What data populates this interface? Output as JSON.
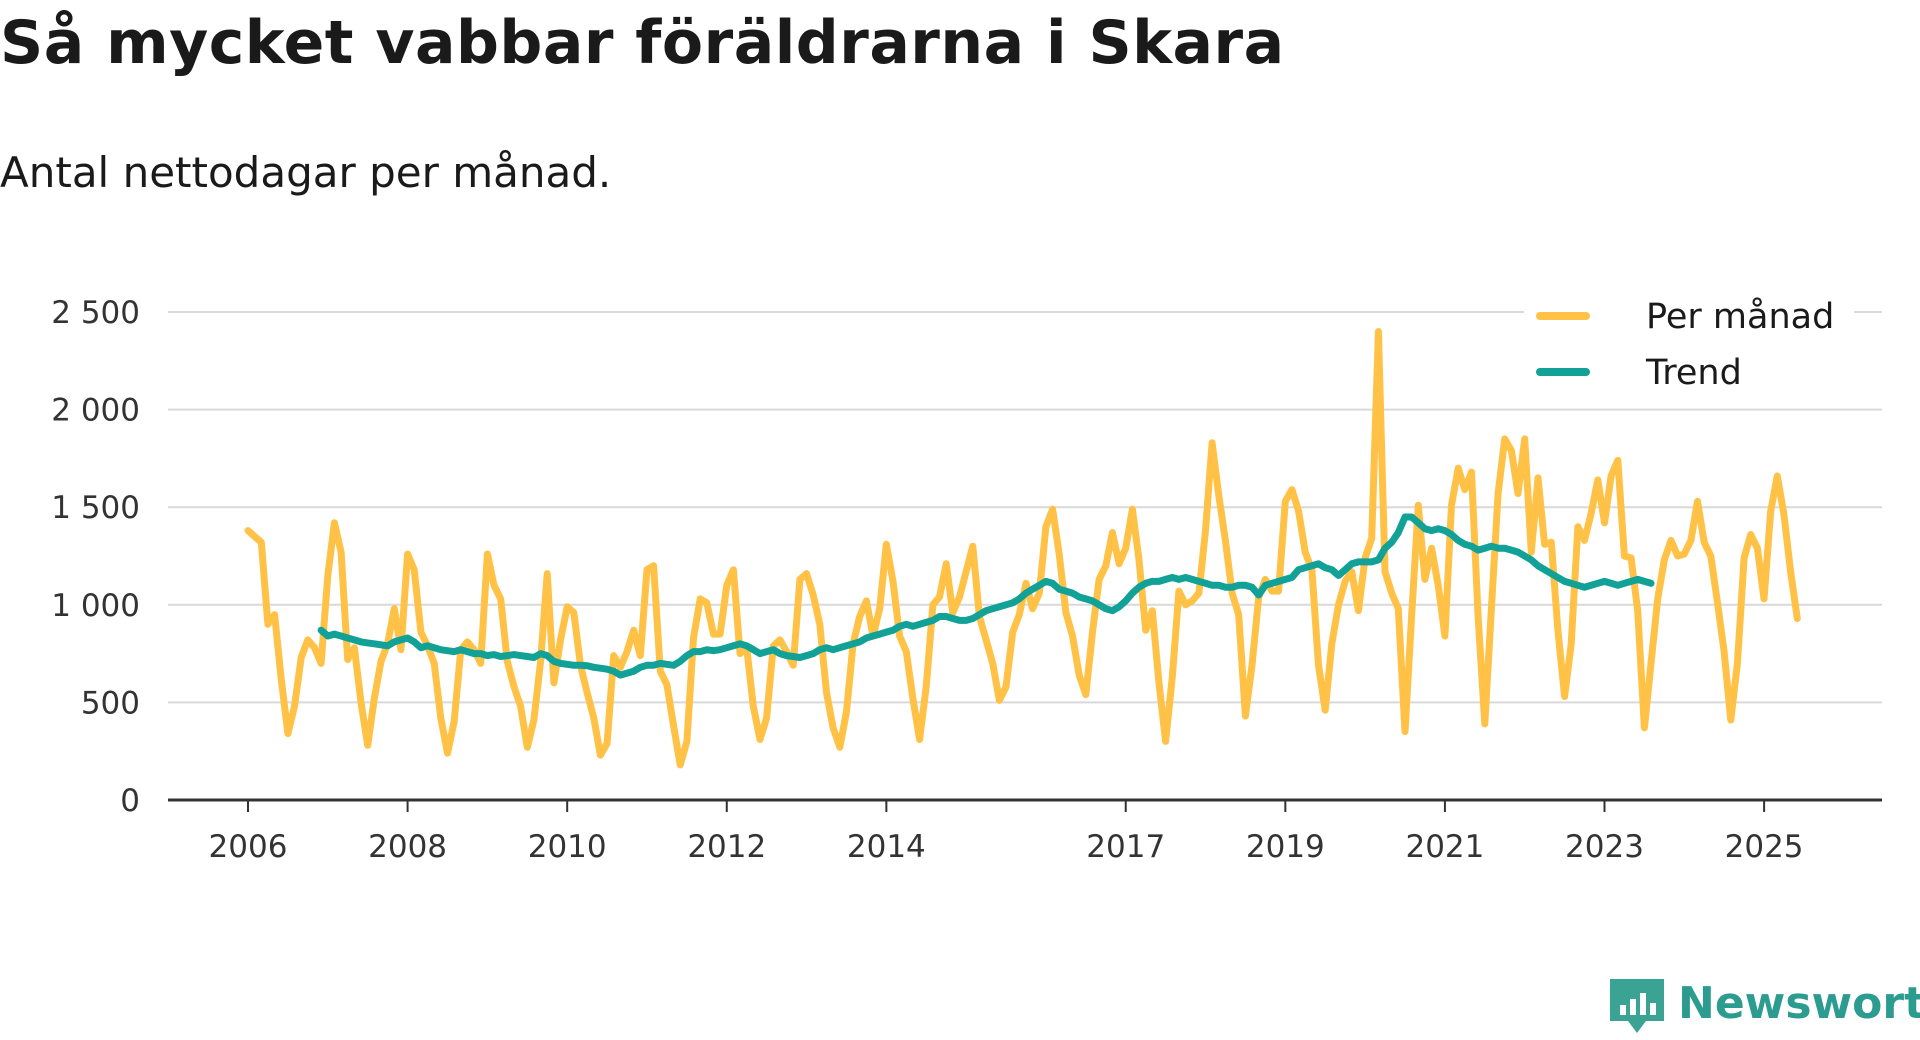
{
  "chart_data": {
    "type": "line",
    "title": "Så mycket vabbar föräldrarna i Skara",
    "subtitle": "Antal nettodagar per månad.",
    "xlabel": "",
    "ylabel": "",
    "ylim": [
      0,
      2500
    ],
    "yticks": [
      0,
      500,
      1000,
      1500,
      2000,
      2500
    ],
    "ytick_labels": [
      "0",
      "500",
      "1 000",
      "1 500",
      "2 000",
      "2 500"
    ],
    "xlim": [
      2006.0,
      2025.5
    ],
    "xticks": [
      2006,
      2008,
      2010,
      2012,
      2014,
      2017,
      2019,
      2021,
      2023,
      2025
    ],
    "xtick_labels": [
      "2006",
      "2008",
      "2010",
      "2012",
      "2014",
      "2017",
      "2019",
      "2021",
      "2023",
      "2025"
    ],
    "grid": true,
    "legend_position": "top-right",
    "colors": {
      "per_month": "#FFC247",
      "trend": "#11A197",
      "grid": "#d9d9d9",
      "axis": "#333333"
    },
    "series": [
      {
        "name": "Per månad",
        "x_start": 2006.0,
        "x_step": 0.08333,
        "values": [
          1380,
          1350,
          1320,
          900,
          950,
          620,
          340,
          480,
          730,
          820,
          780,
          700,
          1150,
          1420,
          1270,
          720,
          780,
          500,
          280,
          520,
          710,
          800,
          980,
          770,
          1260,
          1180,
          860,
          790,
          700,
          420,
          240,
          400,
          770,
          810,
          770,
          700,
          1260,
          1100,
          1030,
          710,
          580,
          480,
          270,
          410,
          710,
          1160,
          600,
          820,
          990,
          960,
          690,
          550,
          420,
          230,
          290,
          740,
          680,
          760,
          870,
          740,
          1180,
          1200,
          660,
          590,
          380,
          180,
          300,
          830,
          1030,
          1010,
          850,
          850,
          1100,
          1180,
          750,
          780,
          480,
          310,
          420,
          790,
          820,
          760,
          690,
          1130,
          1160,
          1050,
          900,
          550,
          370,
          270,
          450,
          800,
          940,
          1020,
          840,
          980,
          1310,
          1120,
          840,
          760,
          520,
          310,
          580,
          1000,
          1040,
          1210,
          960,
          1040,
          1170,
          1300,
          940,
          820,
          700,
          510,
          580,
          860,
          950,
          1110,
          980,
          1060,
          1400,
          1490,
          1260,
          960,
          840,
          640,
          540,
          860,
          1130,
          1200,
          1370,
          1210,
          1290,
          1490,
          1230,
          870,
          970,
          600,
          300,
          630,
          1070,
          1000,
          1020,
          1060,
          1380,
          1830,
          1560,
          1330,
          1060,
          950,
          430,
          690,
          1040,
          1130,
          1070,
          1070,
          1530,
          1590,
          1480,
          1270,
          1180,
          690,
          460,
          800,
          1000,
          1120,
          1170,
          970,
          1240,
          1340,
          2400,
          1170,
          1060,
          980,
          350,
          940,
          1510,
          1130,
          1290,
          1100,
          840,
          1510,
          1700,
          1590,
          1680,
          940,
          390,
          980,
          1570,
          1850,
          1790,
          1570,
          1850,
          1270,
          1650,
          1310,
          1320,
          870,
          530,
          800,
          1400,
          1330,
          1470,
          1640,
          1420,
          1660,
          1740,
          1250,
          1240,
          970,
          370,
          700,
          1030,
          1230,
          1330,
          1250,
          1260,
          1330,
          1530,
          1320,
          1250,
          1010,
          760,
          410,
          700,
          1240,
          1360,
          1290,
          1030,
          1480,
          1660,
          1460,
          1170,
          930
        ]
      },
      {
        "name": "Trend",
        "x_start": 2006.9167,
        "x_step": 0.08333,
        "values": [
          870,
          840,
          850,
          840,
          830,
          820,
          810,
          805,
          800,
          795,
          790,
          810,
          820,
          830,
          810,
          780,
          790,
          780,
          770,
          765,
          760,
          770,
          760,
          750,
          750,
          740,
          745,
          735,
          740,
          745,
          740,
          735,
          730,
          750,
          740,
          710,
          700,
          695,
          690,
          690,
          688,
          680,
          675,
          670,
          660,
          640,
          650,
          660,
          680,
          690,
          690,
          700,
          695,
          690,
          710,
          740,
          760,
          760,
          770,
          765,
          770,
          780,
          790,
          800,
          790,
          770,
          750,
          760,
          770,
          750,
          740,
          735,
          730,
          740,
          750,
          770,
          780,
          770,
          780,
          790,
          800,
          810,
          830,
          840,
          850,
          860,
          870,
          890,
          900,
          890,
          900,
          910,
          920,
          940,
          940,
          930,
          920,
          920,
          930,
          950,
          970,
          980,
          990,
          1000,
          1010,
          1030,
          1060,
          1080,
          1100,
          1120,
          1110,
          1080,
          1070,
          1060,
          1040,
          1030,
          1020,
          1000,
          980,
          970,
          990,
          1020,
          1060,
          1090,
          1110,
          1120,
          1120,
          1130,
          1140,
          1130,
          1140,
          1130,
          1120,
          1110,
          1100,
          1100,
          1090,
          1090,
          1100,
          1100,
          1090,
          1050,
          1100,
          1110,
          1120,
          1130,
          1140,
          1180,
          1190,
          1200,
          1210,
          1190,
          1180,
          1150,
          1180,
          1210,
          1220,
          1220,
          1220,
          1230,
          1290,
          1320,
          1370,
          1450,
          1450,
          1420,
          1390,
          1380,
          1390,
          1380,
          1360,
          1330,
          1310,
          1300,
          1280,
          1290,
          1300,
          1290,
          1290,
          1280,
          1270,
          1250,
          1230,
          1200,
          1180,
          1160,
          1140,
          1120,
          1110,
          1100,
          1090,
          1100,
          1110,
          1120,
          1110,
          1100,
          1110,
          1120,
          1130,
          1120,
          1110
        ]
      }
    ]
  },
  "brand": {
    "name": "Newsworthy"
  }
}
